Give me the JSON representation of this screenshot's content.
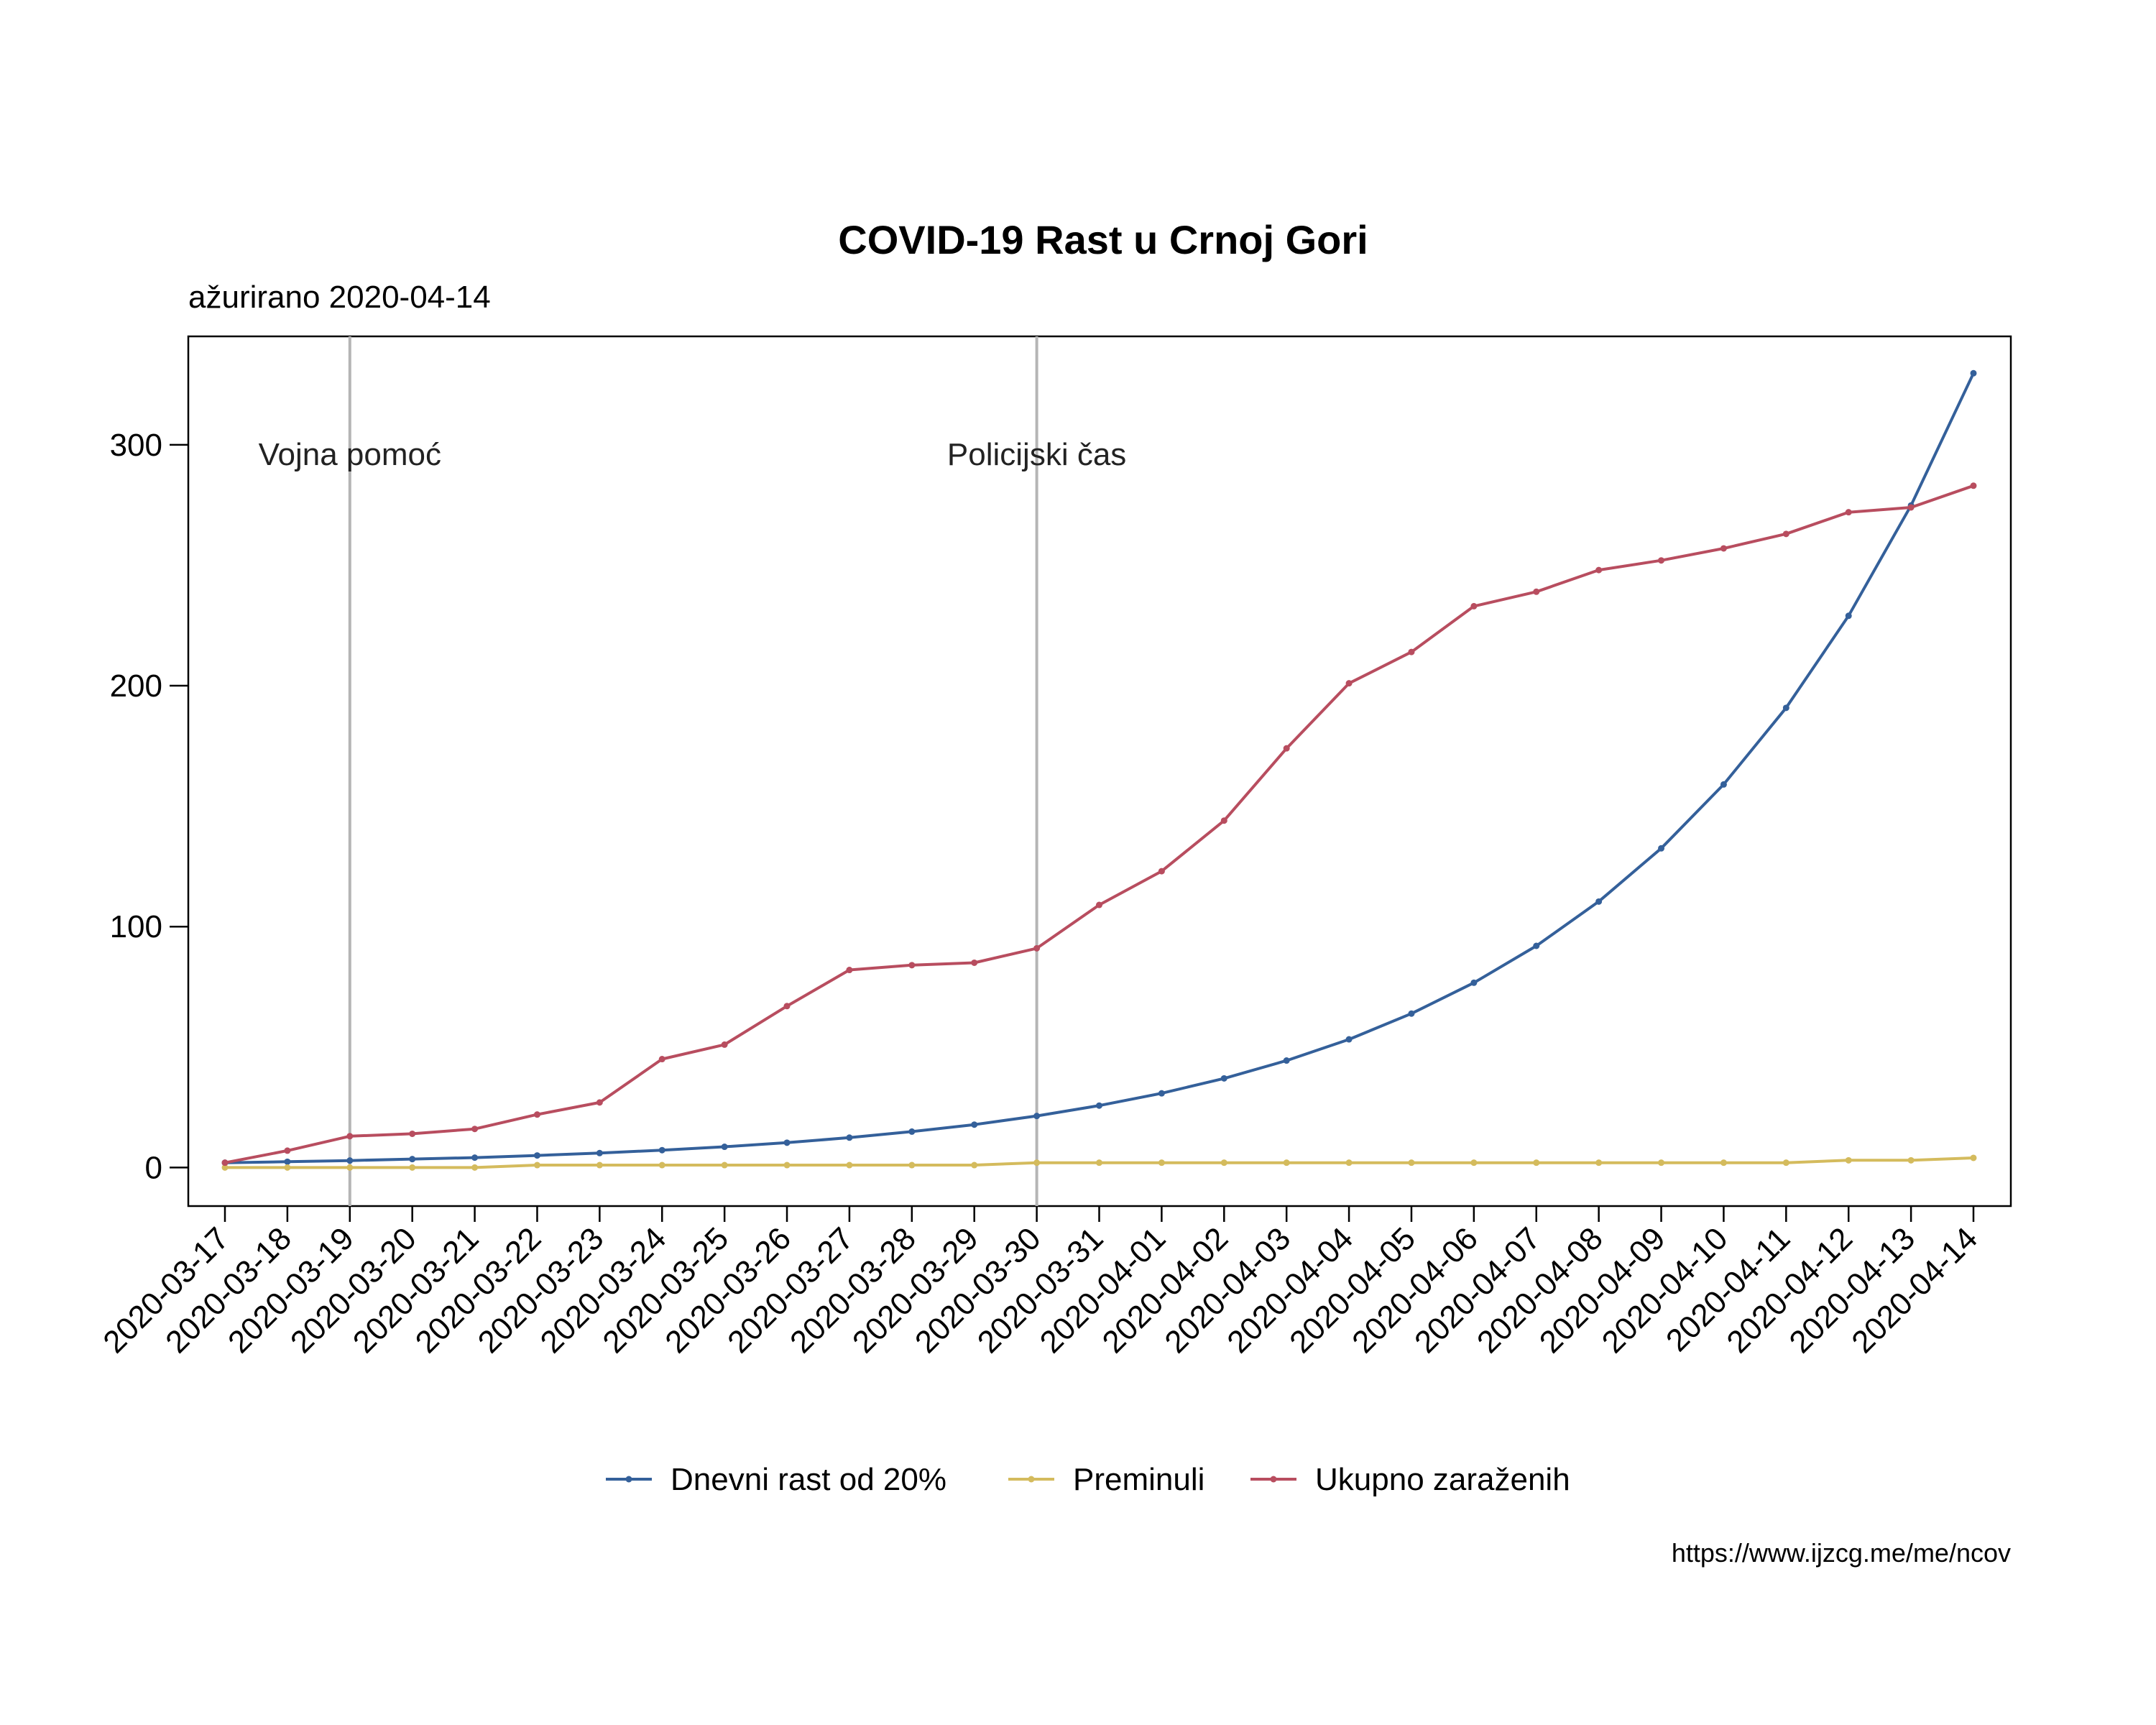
{
  "chart_data": {
    "type": "line",
    "title": "COVID-19 Rast u Crnoj Gori",
    "subtitle": "ažurirano 2020-04-14",
    "caption": "https://www.ijzcg.me/me/ncov",
    "xlabel": "",
    "ylabel": "",
    "ylim": [
      -16,
      345
    ],
    "yticks": [
      0,
      100,
      200,
      300
    ],
    "grid": false,
    "legend_position": "bottom",
    "x": [
      "2020-03-17",
      "2020-03-18",
      "2020-03-19",
      "2020-03-20",
      "2020-03-21",
      "2020-03-22",
      "2020-03-23",
      "2020-03-24",
      "2020-03-25",
      "2020-03-26",
      "2020-03-27",
      "2020-03-28",
      "2020-03-29",
      "2020-03-30",
      "2020-03-31",
      "2020-04-01",
      "2020-04-02",
      "2020-04-03",
      "2020-04-04",
      "2020-04-05",
      "2020-04-06",
      "2020-04-07",
      "2020-04-08",
      "2020-04-09",
      "2020-04-10",
      "2020-04-11",
      "2020-04-12",
      "2020-04-13",
      "2020-04-14"
    ],
    "series": [
      {
        "name": "Dnevni rast od 20%",
        "color": "#34609a",
        "values": [
          2,
          2.4,
          2.9,
          3.5,
          4.1,
          5,
          6,
          7.2,
          8.6,
          10.3,
          12.4,
          14.9,
          17.8,
          21.4,
          25.7,
          30.8,
          37,
          44.4,
          53.2,
          63.9,
          76.7,
          92,
          110.4,
          132.5,
          159,
          190.8,
          229,
          274.8,
          329.7
        ]
      },
      {
        "name": "Preminuli",
        "color": "#d4bb5d",
        "values": [
          0,
          0,
          0,
          0,
          0,
          1,
          1,
          1,
          1,
          1,
          1,
          1,
          1,
          2,
          2,
          2,
          2,
          2,
          2,
          2,
          2,
          2,
          2,
          2,
          2,
          2,
          3,
          3,
          4
        ]
      },
      {
        "name": "Ukupno zaraženih",
        "color": "#b84d5f",
        "values": [
          2,
          7,
          13,
          14,
          16,
          22,
          27,
          45,
          51,
          67,
          82,
          84,
          85,
          91,
          109,
          123,
          144,
          174,
          201,
          214,
          233,
          239,
          248,
          252,
          257,
          263,
          272,
          274,
          283
        ]
      }
    ],
    "events": [
      {
        "date": "2020-03-19",
        "label": "Vojna pomoć"
      },
      {
        "date": "2020-03-30",
        "label": "Policijski čas"
      }
    ]
  }
}
